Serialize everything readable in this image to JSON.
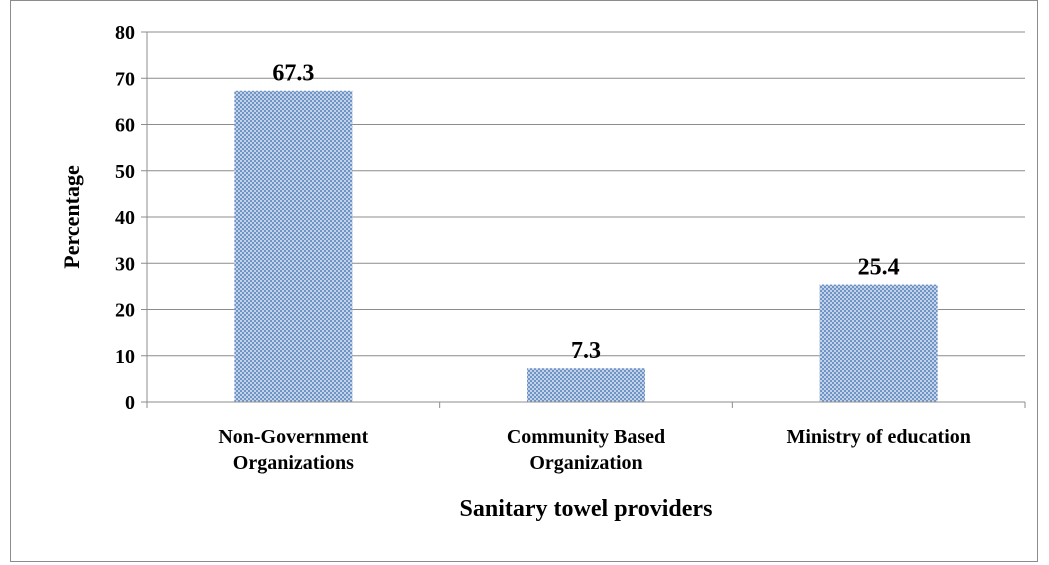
{
  "chart_data": {
    "type": "bar",
    "categories": [
      [
        "Non-Government",
        "Organizations"
      ],
      [
        "Community Based",
        "Organization"
      ],
      [
        "Ministry of education"
      ]
    ],
    "values": [
      67.3,
      7.3,
      25.4
    ],
    "data_labels": [
      "67.3",
      "7.3",
      "25.4"
    ],
    "title": "",
    "xlabel": "Sanitary towel providers",
    "ylabel": "Percentage",
    "ylim": [
      0,
      80
    ],
    "yticks": [
      "0",
      "10",
      "20",
      "30",
      "40",
      "50",
      "60",
      "70",
      "80"
    ],
    "grid": true,
    "legend": "none",
    "colors": {
      "bar_fill": "#6f94c6",
      "bar_dot": "#ffffff",
      "grid": "#8c8c8c",
      "axis": "#8c8c8c"
    }
  }
}
